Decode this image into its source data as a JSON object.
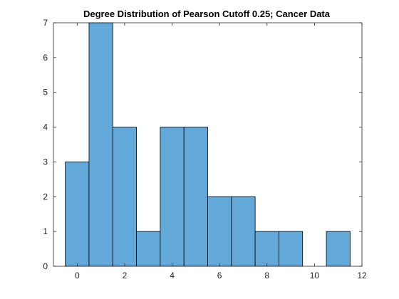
{
  "chart_data": {
    "type": "bar",
    "title": "Degree Distribution of Pearson Cutoff 0.25; Cancer Data",
    "xlabel": "",
    "ylabel": "",
    "bin_width": 1,
    "bins": [
      {
        "start": -0.5,
        "end": 0.5,
        "count": 3
      },
      {
        "start": 0.5,
        "end": 1.5,
        "count": 7
      },
      {
        "start": 1.5,
        "end": 2.5,
        "count": 4
      },
      {
        "start": 2.5,
        "end": 3.5,
        "count": 1
      },
      {
        "start": 3.5,
        "end": 4.5,
        "count": 4
      },
      {
        "start": 4.5,
        "end": 5.5,
        "count": 4
      },
      {
        "start": 5.5,
        "end": 6.5,
        "count": 2
      },
      {
        "start": 6.5,
        "end": 7.5,
        "count": 2
      },
      {
        "start": 7.5,
        "end": 8.5,
        "count": 1
      },
      {
        "start": 8.5,
        "end": 9.5,
        "count": 1
      },
      {
        "start": 9.5,
        "end": 10.5,
        "count": 0
      },
      {
        "start": 10.5,
        "end": 11.5,
        "count": 1
      }
    ],
    "xlim": [
      -1,
      12
    ],
    "ylim": [
      0,
      7
    ],
    "xticks": [
      "0",
      "2",
      "4",
      "6",
      "8",
      "10",
      "12"
    ],
    "yticks": [
      "0",
      "1",
      "2",
      "3",
      "4",
      "5",
      "6",
      "7"
    ],
    "grid": false,
    "bar_color": "#62a8d9",
    "edge_color": "#000000"
  }
}
